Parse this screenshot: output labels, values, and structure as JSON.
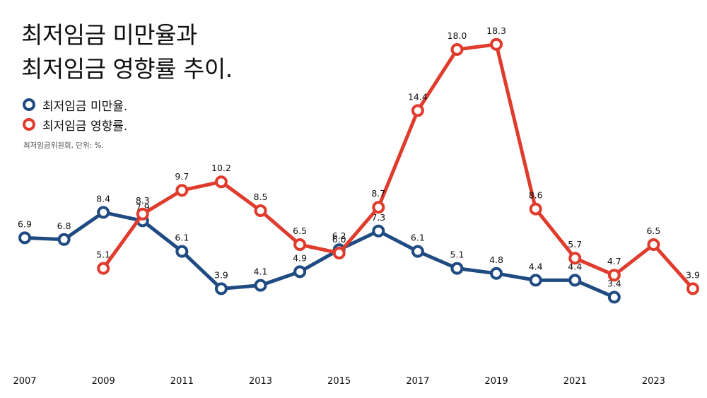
{
  "title": {
    "line1": "최저임금 미만율과",
    "line2": "최저임금 영향률 추이."
  },
  "source": "최저임금위원회, 단위: %.",
  "colors": {
    "blue": "#1f4b82",
    "red": "#e03c2d"
  },
  "chart_data": {
    "type": "line",
    "x_ticks": [
      "2007",
      "2009",
      "2011",
      "2013",
      "2015",
      "2017",
      "2019",
      "2021",
      "2023"
    ],
    "xlim": [
      2007,
      2024
    ],
    "ylim": [
      0,
      20
    ],
    "grid": false,
    "legend_position": "top-left",
    "series": [
      {
        "name": "최저임금 미만율.",
        "color": "#1f4b82",
        "points": [
          {
            "x": 2007,
            "y": 6.9,
            "label": "6.9"
          },
          {
            "x": 2008,
            "y": 6.8,
            "label": "6.8"
          },
          {
            "x": 2009,
            "y": 8.4,
            "label": "8.4"
          },
          {
            "x": 2010,
            "y": 7.9,
            "label": "7.9"
          },
          {
            "x": 2011,
            "y": 6.1,
            "label": "6.1"
          },
          {
            "x": 2012,
            "y": 3.9,
            "label": "3.9"
          },
          {
            "x": 2013,
            "y": 4.1,
            "label": "4.1"
          },
          {
            "x": 2014,
            "y": 4.9,
            "label": "4.9"
          },
          {
            "x": 2015,
            "y": 6.2,
            "label": "6.2"
          },
          {
            "x": 2016,
            "y": 7.3,
            "label": "7.3"
          },
          {
            "x": 2017,
            "y": 6.1,
            "label": "6.1"
          },
          {
            "x": 2018,
            "y": 5.1,
            "label": "5.1"
          },
          {
            "x": 2019,
            "y": 4.8,
            "label": "4.8"
          },
          {
            "x": 2020,
            "y": 4.4,
            "label": "4.4"
          },
          {
            "x": 2021,
            "y": 4.4,
            "label": "4.4"
          },
          {
            "x": 2022,
            "y": 3.4,
            "label": "3.4"
          }
        ]
      },
      {
        "name": "최저임금 영향률.",
        "color": "#e03c2d",
        "points": [
          {
            "x": 2009,
            "y": 5.1,
            "label": "5.1"
          },
          {
            "x": 2010,
            "y": 8.3,
            "label": "8.3"
          },
          {
            "x": 2011,
            "y": 9.7,
            "label": "9.7"
          },
          {
            "x": 2012,
            "y": 10.2,
            "label": "10.2"
          },
          {
            "x": 2013,
            "y": 8.5,
            "label": "8.5"
          },
          {
            "x": 2014,
            "y": 6.5,
            "label": "6.5"
          },
          {
            "x": 2015,
            "y": 6.0,
            "label": "6.0"
          },
          {
            "x": 2016,
            "y": 8.7,
            "label": "8.7"
          },
          {
            "x": 2017,
            "y": 14.4,
            "label": "14.4"
          },
          {
            "x": 2018,
            "y": 18.0,
            "label": "18.0"
          },
          {
            "x": 2019,
            "y": 18.3,
            "label": "18.3"
          },
          {
            "x": 2020,
            "y": 8.6,
            "label": "8.6"
          },
          {
            "x": 2021,
            "y": 5.7,
            "label": "5.7"
          },
          {
            "x": 2022,
            "y": 4.7,
            "label": "4.7"
          },
          {
            "x": 2023,
            "y": 6.5,
            "label": "6.5"
          },
          {
            "x": 2024,
            "y": 3.9,
            "label": "3.9"
          }
        ]
      }
    ]
  }
}
